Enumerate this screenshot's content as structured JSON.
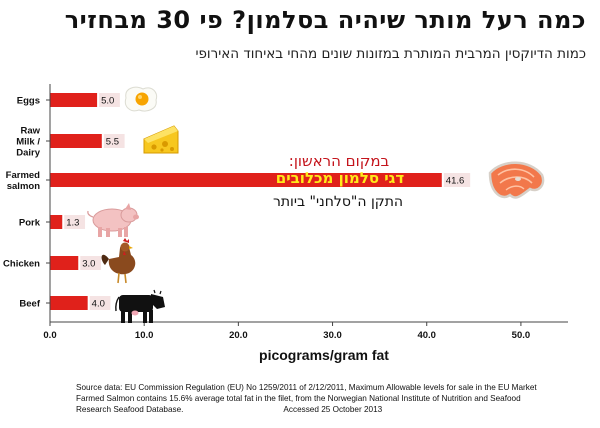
{
  "header": {
    "title": "כמה רעל מותר שיהיה בסלמון? פי 30 מבחזיר",
    "subtitle": "כמות הדיוקסין המרבית המותרת במזונות שונים מהחי באיחוד האירופי"
  },
  "chart_data": {
    "type": "bar",
    "orientation": "horizontal",
    "categories": [
      "Eggs",
      "Raw Milk / Dairy",
      "Farmed salmon",
      "Pork",
      "Chicken",
      "Beef"
    ],
    "category_lines": [
      [
        "Eggs"
      ],
      [
        "Raw",
        "Milk /",
        "Dairy"
      ],
      [
        "Farmed",
        "salmon"
      ],
      [
        "Pork"
      ],
      [
        "Chicken"
      ],
      [
        "Beef"
      ]
    ],
    "values": [
      5.0,
      5.5,
      41.6,
      1.3,
      3.0,
      4.0
    ],
    "value_labels": [
      "5.0",
      "5.5",
      "41.6",
      "1.3",
      "3.0",
      "4.0"
    ],
    "icons": [
      "fried-egg-icon",
      "cheese-icon",
      "salmon-steak-icon",
      "pig-icon",
      "chicken-icon",
      "cow-icon"
    ],
    "xlabel": "picograms/gram fat",
    "xlim": [
      0,
      55
    ],
    "xticks": [
      0,
      10,
      20,
      30,
      40,
      50
    ],
    "xtick_labels": [
      "0.0",
      "10.0",
      "20.0",
      "30.0",
      "40.0",
      "50.0"
    ],
    "grid": false,
    "colors": {
      "bar": "#e0211b",
      "label_pink": "#f5e3e3"
    },
    "annotations": [
      "במקום הראשון:",
      "דגי סלמון מכלובים",
      "התקן ה\"סלחני\" ביותר"
    ]
  },
  "source": {
    "line1": "Source data: EU Commission Regulation (EU) No 1259/2011 of 2/12/2011, Maximum Allowable levels for sale in the EU Market",
    "line2": "Farmed Salmon contains 15.6% average total fat in the filet, from the Norwegian National Institute of Nutrition and Seafood",
    "line3": "Research Seafood Database.",
    "accessed": "Accessed 25 October 2013"
  }
}
